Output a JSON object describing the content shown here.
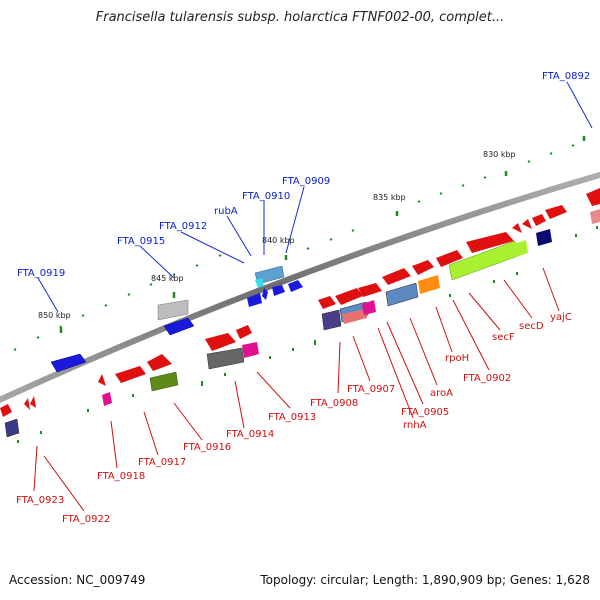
{
  "title": "Francisella tularensis subsp. holarctica FTNF002-00, complet...",
  "footer": {
    "accession": "Accession: NC_009749",
    "summary": "Topology: circular; Length: 1,890,909 bp; Genes: 1,628"
  },
  "colors": {
    "forward_label": "#0a22c8",
    "reverse_label": "#cc1111",
    "backbone": "#808080",
    "tick": "#228822"
  },
  "kbp_ticks": [
    "830 kbp",
    "835 kbp",
    "840 kbp",
    "845 kbp",
    "850 kbp"
  ],
  "forward_labels": [
    "FTA_0892",
    "FTA_0909",
    "FTA_0910",
    "rubA",
    "FTA_0912",
    "FTA_0915",
    "FTA_0919"
  ],
  "reverse_labels": [
    "yajC",
    "secD",
    "secF",
    "FTA_0902",
    "rpoH",
    "aroA",
    "FTA_0905",
    "rnhA",
    "FTA_0907",
    "FTA_0908",
    "FTA_0913",
    "FTA_0914",
    "FTA_0916",
    "FTA_0917",
    "FTA_0918",
    "FTA_0923",
    "FTA_0922"
  ]
}
